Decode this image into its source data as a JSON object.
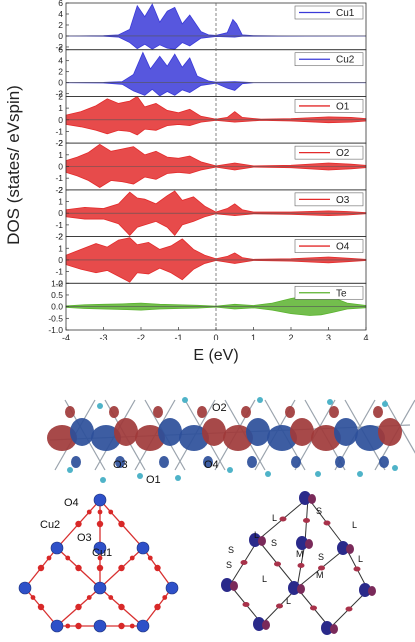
{
  "chart_data": {
    "type": "area",
    "ylabel": "DOS (states/ eVspin)",
    "xlabel": "E (eV)",
    "xlim": [
      -4,
      4
    ],
    "x_ticks": [
      -4,
      -3,
      -2,
      -1,
      0,
      1,
      2,
      3,
      4
    ],
    "fermi_level": 0,
    "panels": [
      {
        "name": "Cu1",
        "color": "#3a3ad8",
        "ylim": [
          -2.5,
          6
        ],
        "yticks": [
          6,
          4,
          2,
          0,
          -2
        ],
        "up": [
          [
            -4,
            0
          ],
          [
            -3,
            0.05
          ],
          [
            -2.6,
            0.2
          ],
          [
            -2.3,
            1.2
          ],
          [
            -2.1,
            5.5
          ],
          [
            -1.9,
            3.5
          ],
          [
            -1.7,
            5.8
          ],
          [
            -1.5,
            2.5
          ],
          [
            -1.3,
            4.5
          ],
          [
            -1.1,
            5.2
          ],
          [
            -0.9,
            2.2
          ],
          [
            -0.7,
            3.8
          ],
          [
            -0.4,
            0.8
          ],
          [
            -0.2,
            0.2
          ],
          [
            0,
            0.1
          ],
          [
            0.3,
            0.6
          ],
          [
            0.45,
            3
          ],
          [
            0.55,
            2.2
          ],
          [
            0.7,
            0.2
          ],
          [
            1,
            0.05
          ],
          [
            2,
            0
          ],
          [
            4,
            0
          ]
        ],
        "down": [
          [
            -4,
            0
          ],
          [
            -3,
            -0.05
          ],
          [
            -2.6,
            -0.2
          ],
          [
            -2.3,
            -1.2
          ],
          [
            -2.1,
            -2.3
          ],
          [
            -1.9,
            -1.5
          ],
          [
            -1.7,
            -2.4
          ],
          [
            -1.5,
            -1.6
          ],
          [
            -1.3,
            -2.2
          ],
          [
            -1.1,
            -2.4
          ],
          [
            -0.9,
            -1.2
          ],
          [
            -0.7,
            -1.8
          ],
          [
            -0.4,
            -0.4
          ],
          [
            0,
            -0.1
          ],
          [
            0.5,
            -0.2
          ],
          [
            0.7,
            -0.05
          ],
          [
            4,
            0
          ]
        ]
      },
      {
        "name": "Cu2",
        "color": "#3a3ad8",
        "ylim": [
          -2.5,
          6
        ],
        "yticks": [
          6,
          4,
          2,
          0,
          -2
        ],
        "up": [
          [
            -4,
            0
          ],
          [
            -3,
            0.05
          ],
          [
            -2.5,
            0.2
          ],
          [
            -2.2,
            1.5
          ],
          [
            -1.95,
            5.5
          ],
          [
            -1.75,
            2.5
          ],
          [
            -1.5,
            4.8
          ],
          [
            -1.3,
            3
          ],
          [
            -1.1,
            5.2
          ],
          [
            -0.9,
            2.8
          ],
          [
            -0.7,
            4.5
          ],
          [
            -0.5,
            1.2
          ],
          [
            -0.2,
            0.3
          ],
          [
            0,
            0.1
          ],
          [
            0.5,
            0.2
          ],
          [
            1,
            0
          ],
          [
            4,
            0
          ]
        ],
        "down": [
          [
            -4,
            0
          ],
          [
            -3,
            -0.05
          ],
          [
            -2.5,
            -0.3
          ],
          [
            -2.2,
            -1.5
          ],
          [
            -1.9,
            -2.3
          ],
          [
            -1.7,
            -1.2
          ],
          [
            -1.5,
            -2.4
          ],
          [
            -1.3,
            -1.6
          ],
          [
            -1.1,
            -2.3
          ],
          [
            -0.9,
            -1.3
          ],
          [
            -0.7,
            -1.8
          ],
          [
            -0.4,
            -0.5
          ],
          [
            0,
            -0.1
          ],
          [
            0.3,
            -1
          ],
          [
            0.5,
            -1.4
          ],
          [
            0.7,
            -0.2
          ],
          [
            1,
            0
          ],
          [
            4,
            0
          ]
        ]
      },
      {
        "name": "O1",
        "color": "#e32b2b",
        "ylim": [
          -2,
          2
        ],
        "yticks": [
          2,
          1,
          0,
          -1,
          -2
        ],
        "up": [
          [
            -4,
            0.4
          ],
          [
            -3.6,
            0.7
          ],
          [
            -3.2,
            1.2
          ],
          [
            -2.9,
            1.8
          ],
          [
            -2.6,
            1.4
          ],
          [
            -2.3,
            1.6
          ],
          [
            -2.1,
            2
          ],
          [
            -1.9,
            1.1
          ],
          [
            -1.6,
            1.4
          ],
          [
            -1.3,
            0.8
          ],
          [
            -1,
            0.6
          ],
          [
            -0.7,
            0.9
          ],
          [
            -0.4,
            0.3
          ],
          [
            0,
            0.05
          ],
          [
            0.3,
            0.2
          ],
          [
            0.5,
            0.7
          ],
          [
            0.7,
            0.2
          ],
          [
            1.2,
            0.05
          ],
          [
            2,
            0.1
          ],
          [
            3,
            0.25
          ],
          [
            3.6,
            0.2
          ],
          [
            4,
            0.1
          ]
        ],
        "down": [
          [
            -4,
            -0.4
          ],
          [
            -3.6,
            -0.6
          ],
          [
            -3.2,
            -0.9
          ],
          [
            -2.9,
            -1.2
          ],
          [
            -2.6,
            -0.9
          ],
          [
            -2.3,
            -1
          ],
          [
            -2.1,
            -1.3
          ],
          [
            -1.9,
            -0.8
          ],
          [
            -1.6,
            -0.9
          ],
          [
            -1.3,
            -0.5
          ],
          [
            -1,
            -0.4
          ],
          [
            -0.7,
            -0.5
          ],
          [
            -0.4,
            -0.2
          ],
          [
            0,
            -0.05
          ],
          [
            0.5,
            -0.2
          ],
          [
            1.2,
            -0.05
          ],
          [
            2,
            -0.1
          ],
          [
            3,
            -0.25
          ],
          [
            3.6,
            -0.2
          ],
          [
            4,
            -0.1
          ]
        ]
      },
      {
        "name": "O2",
        "color": "#e32b2b",
        "ylim": [
          -2,
          2
        ],
        "yticks": [
          2,
          1,
          0,
          -1,
          -2
        ],
        "up": [
          [
            -4,
            0.5
          ],
          [
            -3.7,
            0.8
          ],
          [
            -3.4,
            1.2
          ],
          [
            -3.1,
            1.9
          ],
          [
            -2.8,
            1.3
          ],
          [
            -2.5,
            1.5
          ],
          [
            -2.2,
            1.7
          ],
          [
            -1.9,
            1
          ],
          [
            -1.6,
            1.3
          ],
          [
            -1.3,
            0.8
          ],
          [
            -1,
            0.7
          ],
          [
            -0.7,
            0.9
          ],
          [
            -0.4,
            0.4
          ],
          [
            0,
            0.05
          ],
          [
            0.5,
            0.3
          ],
          [
            1,
            0.05
          ],
          [
            2,
            0.1
          ],
          [
            3,
            0.3
          ],
          [
            3.6,
            0.2
          ],
          [
            4,
            0.1
          ]
        ],
        "down": [
          [
            -4,
            -0.5
          ],
          [
            -3.7,
            -0.8
          ],
          [
            -3.4,
            -1.2
          ],
          [
            -3.1,
            -1.8
          ],
          [
            -2.8,
            -1.2
          ],
          [
            -2.5,
            -1.3
          ],
          [
            -2.2,
            -1.5
          ],
          [
            -1.9,
            -0.9
          ],
          [
            -1.6,
            -1.1
          ],
          [
            -1.3,
            -0.6
          ],
          [
            -1,
            -0.5
          ],
          [
            -0.7,
            -0.6
          ],
          [
            -0.4,
            -0.3
          ],
          [
            0,
            -0.05
          ],
          [
            0.5,
            -0.3
          ],
          [
            1,
            -0.05
          ],
          [
            2,
            -0.1
          ],
          [
            3,
            -0.3
          ],
          [
            3.6,
            -0.2
          ],
          [
            4,
            -0.1
          ]
        ]
      },
      {
        "name": "O3",
        "color": "#e32b2b",
        "ylim": [
          -2,
          2
        ],
        "yticks": [
          2,
          1,
          0,
          -1,
          -2
        ],
        "up": [
          [
            -4,
            0.3
          ],
          [
            -3.5,
            0.5
          ],
          [
            -3,
            0.4
          ],
          [
            -2.6,
            0.8
          ],
          [
            -2.3,
            1.8
          ],
          [
            -2.1,
            1.3
          ],
          [
            -1.9,
            1.2
          ],
          [
            -1.6,
            0.8
          ],
          [
            -1.3,
            1.5
          ],
          [
            -1.1,
            1.9
          ],
          [
            -0.9,
            1.1
          ],
          [
            -0.6,
            1.4
          ],
          [
            -0.3,
            0.6
          ],
          [
            0,
            0.1
          ],
          [
            0.3,
            0.4
          ],
          [
            0.5,
            0.8
          ],
          [
            0.7,
            0.3
          ],
          [
            1,
            0.1
          ],
          [
            2,
            0.1
          ],
          [
            3,
            0.2
          ],
          [
            3.5,
            0.15
          ],
          [
            4,
            0.05
          ]
        ],
        "down": [
          [
            -4,
            -0.3
          ],
          [
            -3.5,
            -0.5
          ],
          [
            -3,
            -0.5
          ],
          [
            -2.6,
            -0.9
          ],
          [
            -2.3,
            -1.9
          ],
          [
            -2.1,
            -1.2
          ],
          [
            -1.9,
            -1
          ],
          [
            -1.6,
            -0.7
          ],
          [
            -1.3,
            -1.2
          ],
          [
            -1.1,
            -1.9
          ],
          [
            -0.9,
            -1
          ],
          [
            -0.6,
            -0.7
          ],
          [
            -0.3,
            -0.3
          ],
          [
            0,
            -0.05
          ],
          [
            0.5,
            -0.2
          ],
          [
            1,
            -0.05
          ],
          [
            2,
            -0.1
          ],
          [
            3,
            -0.2
          ],
          [
            3.5,
            -0.15
          ],
          [
            4,
            -0.05
          ]
        ]
      },
      {
        "name": "O4",
        "color": "#e32b2b",
        "ylim": [
          -2,
          2
        ],
        "yticks": [
          2,
          1,
          0,
          -1,
          -2
        ],
        "up": [
          [
            -4,
            0.4
          ],
          [
            -3.6,
            0.9
          ],
          [
            -3.2,
            1.4
          ],
          [
            -2.9,
            1.1
          ],
          [
            -2.6,
            1.7
          ],
          [
            -2.3,
            1.9
          ],
          [
            -2.1,
            1.3
          ],
          [
            -1.8,
            1.5
          ],
          [
            -1.5,
            0.9
          ],
          [
            -1.2,
            1.2
          ],
          [
            -0.9,
            1.8
          ],
          [
            -0.6,
            0.9
          ],
          [
            -0.3,
            0.4
          ],
          [
            0,
            0.1
          ],
          [
            0.3,
            0.3
          ],
          [
            0.5,
            0.6
          ],
          [
            0.7,
            0.2
          ],
          [
            1,
            0.05
          ],
          [
            2,
            0.1
          ],
          [
            3,
            0.25
          ],
          [
            3.5,
            0.15
          ],
          [
            4,
            0.05
          ]
        ],
        "down": [
          [
            -4,
            -0.4
          ],
          [
            -3.6,
            -0.8
          ],
          [
            -3.2,
            -1.1
          ],
          [
            -2.9,
            -0.9
          ],
          [
            -2.6,
            -1.4
          ],
          [
            -2.3,
            -1.9
          ],
          [
            -2.1,
            -1.1
          ],
          [
            -1.8,
            -1.2
          ],
          [
            -1.5,
            -0.7
          ],
          [
            -1.2,
            -1.1
          ],
          [
            -0.9,
            -1.7
          ],
          [
            -0.6,
            -0.8
          ],
          [
            -0.3,
            -0.3
          ],
          [
            0,
            -0.05
          ],
          [
            0.5,
            -0.3
          ],
          [
            1,
            -0.05
          ],
          [
            2,
            -0.1
          ],
          [
            3,
            -0.25
          ],
          [
            3.5,
            -0.15
          ],
          [
            4,
            -0.05
          ]
        ]
      },
      {
        "name": "Te",
        "color": "#5ab32e",
        "ylim": [
          -1,
          1
        ],
        "yticks": [
          1.0,
          0.5,
          0.0,
          -0.5,
          -1.0
        ],
        "up": [
          [
            -4,
            0.03
          ],
          [
            -3.5,
            0.08
          ],
          [
            -3,
            0.1
          ],
          [
            -2.5,
            0.12
          ],
          [
            -2,
            0.15
          ],
          [
            -1.5,
            0.1
          ],
          [
            -1,
            0.08
          ],
          [
            -0.5,
            0.06
          ],
          [
            0,
            0.02
          ],
          [
            0.5,
            0.1
          ],
          [
            1,
            0.05
          ],
          [
            1.5,
            0.15
          ],
          [
            2,
            0.35
          ],
          [
            2.5,
            0.48
          ],
          [
            2.8,
            0.5
          ],
          [
            3.1,
            0.4
          ],
          [
            3.5,
            0.15
          ],
          [
            4,
            0.05
          ]
        ],
        "down": [
          [
            -4,
            -0.03
          ],
          [
            -3.5,
            -0.08
          ],
          [
            -3,
            -0.1
          ],
          [
            -2.5,
            -0.12
          ],
          [
            -2,
            -0.15
          ],
          [
            -1.5,
            -0.1
          ],
          [
            -1,
            -0.08
          ],
          [
            -0.5,
            -0.06
          ],
          [
            0,
            -0.02
          ],
          [
            0.5,
            -0.1
          ],
          [
            1,
            -0.05
          ],
          [
            1.5,
            -0.15
          ],
          [
            2,
            -0.3
          ],
          [
            2.5,
            -0.38
          ],
          [
            2.8,
            -0.35
          ],
          [
            3.1,
            -0.25
          ],
          [
            3.5,
            -0.1
          ],
          [
            4,
            -0.05
          ]
        ]
      }
    ]
  },
  "structure_labels": {
    "density": {
      "o2": "O2",
      "o3": "O3",
      "o1": "O1",
      "o4": "O4"
    },
    "lattice": {
      "o4": "O4",
      "cu2": "Cu2",
      "o3": "O3",
      "cu1": "Cu1"
    },
    "bonds": {
      "s": "S",
      "l": "L",
      "m": "M"
    }
  }
}
